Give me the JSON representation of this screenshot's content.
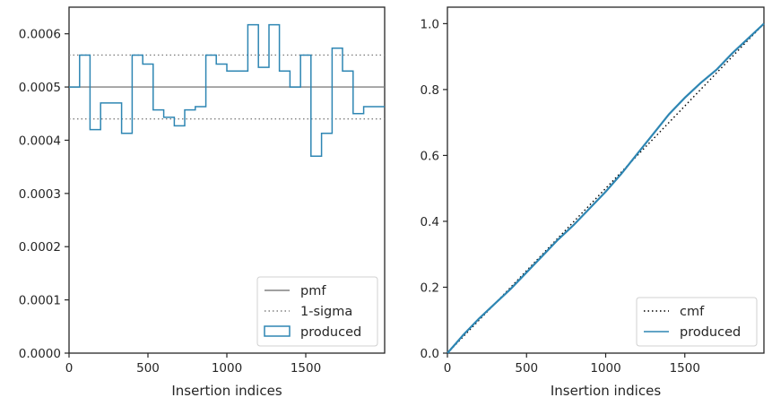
{
  "chart_data": [
    {
      "type": "step-histogram",
      "xlabel": "Insertion indices",
      "ylabel": "",
      "xlim": [
        0,
        2000
      ],
      "ylim": [
        0,
        0.00065
      ],
      "xticks": [
        0,
        500,
        1000,
        1500
      ],
      "yticks": [
        0,
        0.0001,
        0.0002,
        0.0003,
        0.0004,
        0.0005,
        0.0006
      ],
      "ytick_labels": [
        "0.0000",
        "0.0001",
        "0.0002",
        "0.0003",
        "0.0004",
        "0.0005",
        "0.0006"
      ],
      "bin_edges": [
        0,
        67,
        133,
        200,
        267,
        333,
        400,
        467,
        533,
        600,
        667,
        733,
        800,
        867,
        933,
        1000,
        1067,
        1133,
        1200,
        1267,
        1333,
        1400,
        1467,
        1533,
        1600,
        1667,
        1733,
        1800,
        1867,
        1933,
        2000
      ],
      "series": [
        {
          "name": "pmf",
          "style": "solid",
          "color": "#808080",
          "y": 0.0005
        },
        {
          "name": "1-sigma",
          "style": "dotted",
          "color": "#808080",
          "y": [
            0.00044,
            0.00056
          ]
        },
        {
          "name": "produced",
          "style": "step",
          "color": "#2e86b3",
          "values": [
            0.0005,
            0.00056,
            0.00042,
            0.00047,
            0.00047,
            0.000413,
            0.00056,
            0.000543,
            0.000457,
            0.000443,
            0.000427,
            0.000457,
            0.000463,
            0.00056,
            0.000543,
            0.00053,
            0.00053,
            0.000617,
            0.000537,
            0.000617,
            0.00053,
            0.0005,
            0.00056,
            0.00037,
            0.000413,
            0.000573,
            0.00053,
            0.00045,
            0.000463,
            0.000463
          ]
        }
      ],
      "legend": {
        "placement": "lower-right",
        "entries": [
          "pmf",
          "1-sigma",
          "produced"
        ]
      },
      "grid": false
    },
    {
      "type": "line",
      "xlabel": "Insertion indices",
      "ylabel": "",
      "xlim": [
        0,
        2000
      ],
      "ylim": [
        0,
        1.05
      ],
      "xticks": [
        0,
        500,
        1000,
        1500
      ],
      "yticks": [
        0,
        0.2,
        0.4,
        0.6,
        0.8,
        1.0
      ],
      "ytick_labels": [
        "0.0",
        "0.2",
        "0.4",
        "0.6",
        "0.8",
        "1.0"
      ],
      "series": [
        {
          "name": "cmf",
          "style": "dotted",
          "color": "#000000",
          "x": [
            0,
            2000
          ],
          "y": [
            0,
            1.0
          ]
        },
        {
          "name": "produced",
          "style": "solid",
          "color": "#2e86b3",
          "x": [
            0,
            100,
            200,
            300,
            400,
            500,
            600,
            700,
            800,
            900,
            1000,
            1100,
            1200,
            1300,
            1400,
            1500,
            1600,
            1700,
            1800,
            1900,
            2000
          ],
          "y": [
            0,
            0.055,
            0.105,
            0.15,
            0.195,
            0.245,
            0.295,
            0.345,
            0.39,
            0.44,
            0.49,
            0.545,
            0.605,
            0.665,
            0.725,
            0.775,
            0.82,
            0.86,
            0.91,
            0.955,
            1.0
          ]
        }
      ],
      "legend": {
        "placement": "lower-right",
        "entries": [
          "cmf",
          "produced"
        ]
      },
      "grid": false
    }
  ]
}
